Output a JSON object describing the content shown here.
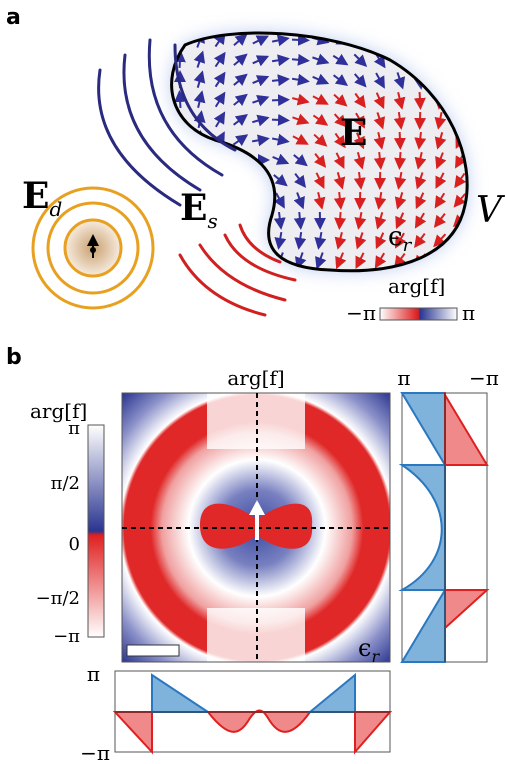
{
  "panel_a": {
    "label": "a",
    "field_d": {
      "symbol": "E",
      "subscript": "d"
    },
    "field_s": {
      "symbol": "E",
      "subscript": "s"
    },
    "field": "E",
    "volume": "V",
    "permittivity": {
      "symbol": "ϵ",
      "subscript": "r"
    },
    "colorbar": {
      "title": "arg[f]",
      "min": "−π",
      "max": "π"
    }
  },
  "panel_b": {
    "label": "b",
    "map_title": "arg[f]",
    "permittivity": {
      "symbol": "ϵ",
      "subscript": "r"
    },
    "colorbar": {
      "title": "arg[f]",
      "ticks": [
        "π",
        "π/2",
        "0",
        "−π/2",
        "−π"
      ]
    },
    "right_profile": {
      "left": "π",
      "right": "−π"
    },
    "bottom_profile": {
      "top": "π",
      "bottom": "−π"
    }
  }
}
